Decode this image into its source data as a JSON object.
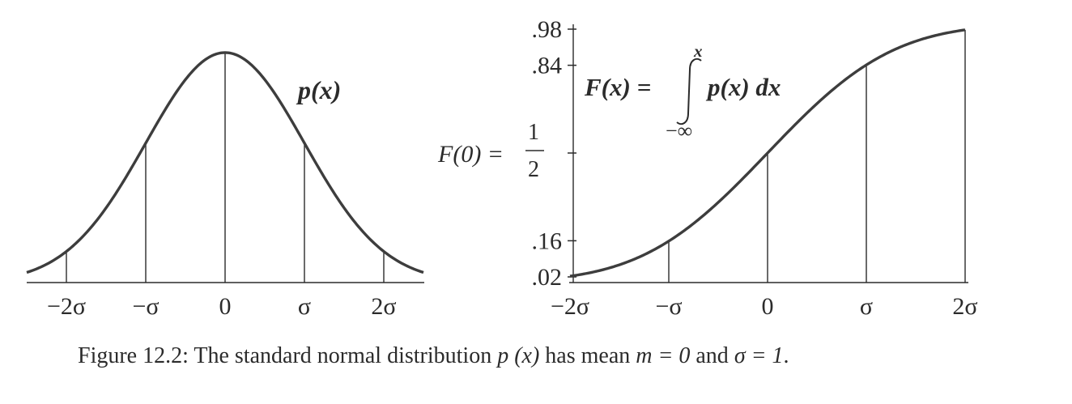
{
  "chart_data": [
    {
      "type": "line",
      "curve_label": "p(x)",
      "x_tick_labels": [
        "−2σ",
        "−σ",
        "0",
        "σ",
        "2σ"
      ],
      "x": [
        -2.5,
        -2.25,
        -2.0,
        -1.75,
        -1.5,
        -1.25,
        -1.0,
        -0.75,
        -0.5,
        -0.25,
        0.0,
        0.25,
        0.5,
        0.75,
        1.0,
        1.25,
        1.5,
        1.75,
        2.0,
        2.25,
        2.5
      ],
      "y": [
        0.0175,
        0.0317,
        0.054,
        0.0863,
        0.1295,
        0.1826,
        0.242,
        0.3011,
        0.3521,
        0.3867,
        0.3989,
        0.3867,
        0.3521,
        0.3011,
        0.242,
        0.1826,
        0.1295,
        0.0863,
        0.054,
        0.0317,
        0.0175
      ],
      "vertical_lines_at": [
        -2,
        -1,
        0,
        1,
        2
      ],
      "xlim": [
        -2.5,
        2.5
      ],
      "ylim": [
        0,
        0.3989
      ]
    },
    {
      "type": "line",
      "formula_lhs": "F(x) =",
      "formula_rhs": "p(x) dx",
      "integral_upper": "x",
      "integral_lower": "−∞",
      "annotation_lhs": "F(0) =",
      "annotation_num": "1",
      "annotation_den": "2",
      "y_tick_labels": [
        ".98",
        ".84",
        ".16",
        ".02"
      ],
      "y_ticks": [
        0.98,
        0.84,
        0.16,
        0.02
      ],
      "half_tick": 0.5,
      "x_tick_labels": [
        "−2σ",
        "−σ",
        "0",
        "σ",
        "2σ"
      ],
      "x": [
        -2.0,
        -1.75,
        -1.5,
        -1.25,
        -1.0,
        -0.75,
        -0.5,
        -0.25,
        0.0,
        0.25,
        0.5,
        0.75,
        1.0,
        1.25,
        1.5,
        1.75,
        2.0
      ],
      "y": [
        0.0228,
        0.0401,
        0.0668,
        0.1056,
        0.1587,
        0.2266,
        0.3085,
        0.4013,
        0.5,
        0.5987,
        0.6915,
        0.7734,
        0.8413,
        0.8944,
        0.9332,
        0.9599,
        0.9772
      ],
      "vertical_lines_at": [
        -1,
        0,
        1,
        2
      ],
      "xlim": [
        -2,
        2
      ],
      "ylim": [
        0.02,
        0.98
      ]
    }
  ],
  "caption": {
    "prefix": "Figure 12.2: The standard normal distribution ",
    "px": "p (x)",
    "middle": " has mean ",
    "m_eq": "m = 0",
    "and": " and ",
    "sigma_eq": "σ = 1",
    "end": "."
  },
  "colors": {
    "curve": "#3d3d3d",
    "axis": "#2b2b2b",
    "text": "#2b2b2b"
  }
}
